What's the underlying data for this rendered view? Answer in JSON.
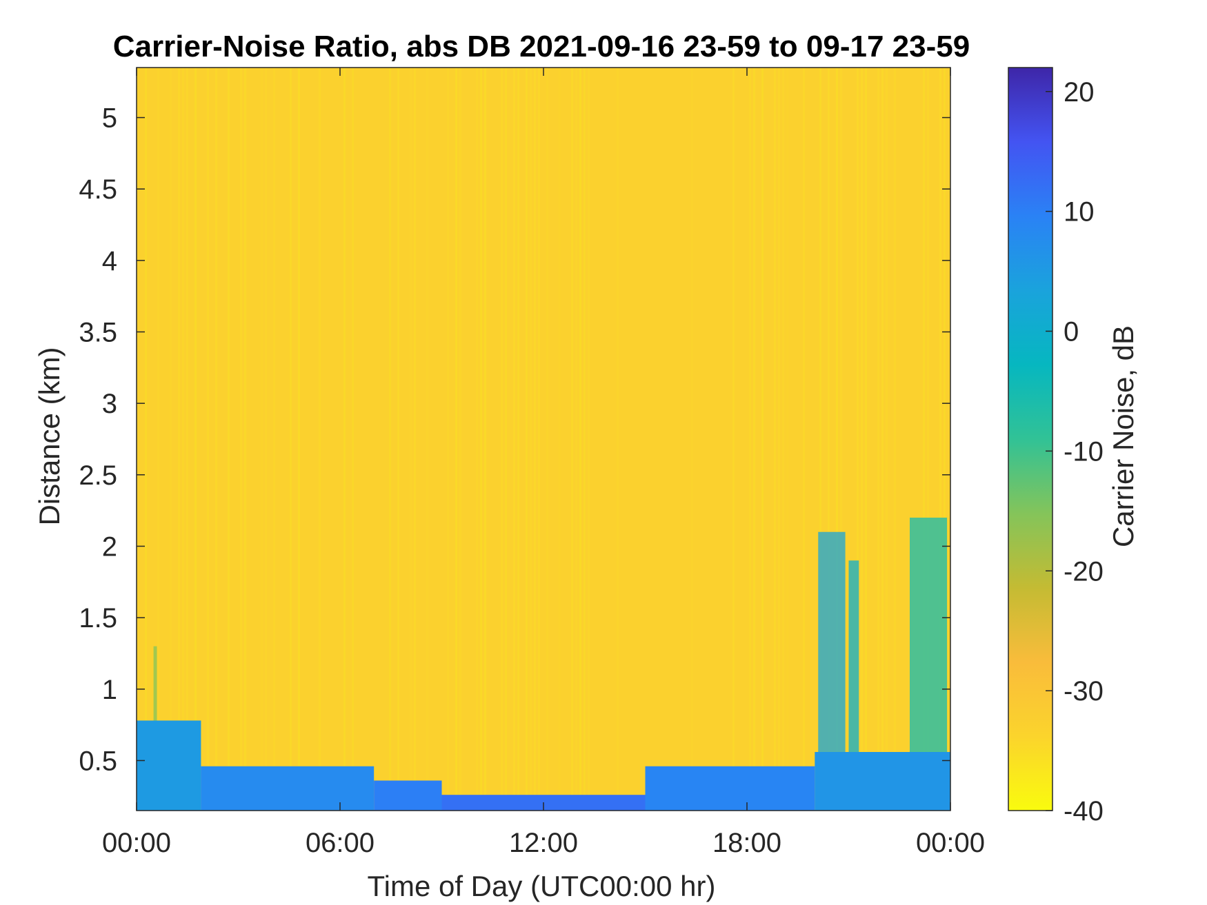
{
  "chart_data": {
    "type": "heatmap",
    "title": "Carrier-Noise Ratio, abs DB 2021-09-16 23-59 to 09-17 23-59",
    "xlabel": "Time of Day (UTC00:00 hr)",
    "ylabel": "Distance (km)",
    "colorbar_label": "Carrier Noise, dB",
    "x_unit": "hours",
    "xlim": [
      0,
      24
    ],
    "ylim": [
      0.15,
      5.35
    ],
    "clim": [
      -40,
      22
    ],
    "x_ticks": [
      0,
      6,
      12,
      18,
      24
    ],
    "x_tick_labels": [
      "00:00",
      "06:00",
      "12:00",
      "18:00",
      "00:00"
    ],
    "y_ticks": [
      0.5,
      1,
      1.5,
      2,
      2.5,
      3,
      3.5,
      4,
      4.5,
      5
    ],
    "y_tick_labels": [
      "0.5",
      "1",
      "1.5",
      "2",
      "2.5",
      "3",
      "3.5",
      "4",
      "4.5",
      "5"
    ],
    "colorbar_ticks": [
      20,
      10,
      0,
      -10,
      -20,
      -30,
      -40
    ],
    "colorbar_tick_labels": [
      "20",
      "10",
      "0",
      "-10",
      "-20",
      "-30",
      "-40"
    ],
    "colormap": "parula",
    "colormap_stops": [
      "#3e26a8",
      "#4354f2",
      "#2a82f5",
      "#1aa3dc",
      "#06b7c0",
      "#31c296",
      "#84c45a",
      "#c4bb33",
      "#f9bc3b",
      "#fbd42c",
      "#f9fb0e"
    ],
    "background_value_db": -33,
    "near_surface_layers": [
      {
        "x_start": 0.0,
        "x_end": 1.9,
        "y_bottom": 0.15,
        "y_top": 0.78,
        "value_db": 5
      },
      {
        "x_start": 1.9,
        "x_end": 7.0,
        "y_bottom": 0.15,
        "y_top": 0.46,
        "value_db": 8
      },
      {
        "x_start": 7.0,
        "x_end": 9.0,
        "y_bottom": 0.15,
        "y_top": 0.36,
        "value_db": 10
      },
      {
        "x_start": 9.0,
        "x_end": 15.0,
        "y_bottom": 0.15,
        "y_top": 0.26,
        "value_db": 12
      },
      {
        "x_start": 15.0,
        "x_end": 20.0,
        "y_bottom": 0.15,
        "y_top": 0.46,
        "value_db": 9
      },
      {
        "x_start": 20.0,
        "x_end": 24.0,
        "y_bottom": 0.15,
        "y_top": 0.56,
        "value_db": 6
      }
    ],
    "plumes": [
      {
        "x_start": 20.1,
        "x_end": 20.9,
        "y_top": 2.1,
        "value_db": 3
      },
      {
        "x_start": 21.0,
        "x_end": 21.3,
        "y_top": 1.9,
        "value_db": 0
      },
      {
        "x_start": 22.8,
        "x_end": 23.9,
        "y_top": 2.2,
        "value_db": -5
      },
      {
        "x_start": 0.5,
        "x_end": 0.6,
        "y_top": 1.3,
        "value_db": -15
      }
    ]
  }
}
